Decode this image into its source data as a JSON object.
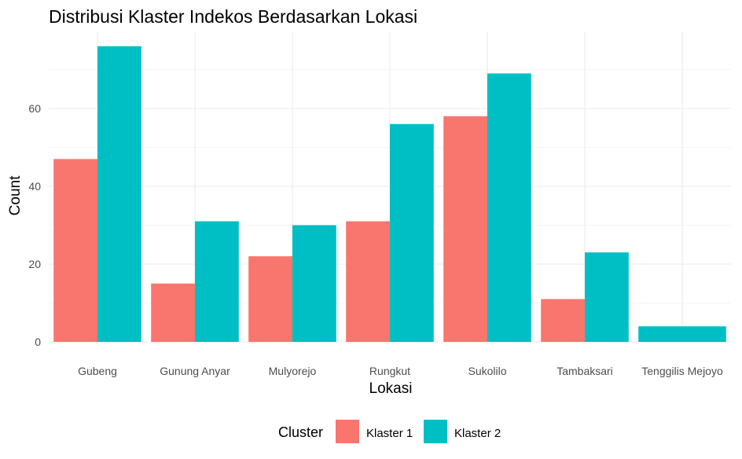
{
  "chart_data": {
    "type": "bar",
    "title": "Distribusi Klaster Indekos Berdasarkan Lokasi",
    "xlabel": "Lokasi",
    "ylabel": "Count",
    "categories": [
      "Gubeng",
      "Gunung Anyar",
      "Mulyorejo",
      "Rungkut",
      "Sukolilo",
      "Tambaksari",
      "Tenggilis Mejoyo"
    ],
    "series": [
      {
        "name": "Klaster 1",
        "color": "#F8766D",
        "values": [
          47,
          15,
          22,
          31,
          58,
          11,
          null
        ]
      },
      {
        "name": "Klaster 2",
        "color": "#00BFC4",
        "values": [
          76,
          31,
          30,
          56,
          69,
          23,
          4
        ]
      }
    ],
    "ylim": [
      0,
      80
    ],
    "yticks": [
      0,
      20,
      40,
      60
    ],
    "grid": true,
    "legend": {
      "title": "Cluster",
      "position": "bottom"
    }
  }
}
